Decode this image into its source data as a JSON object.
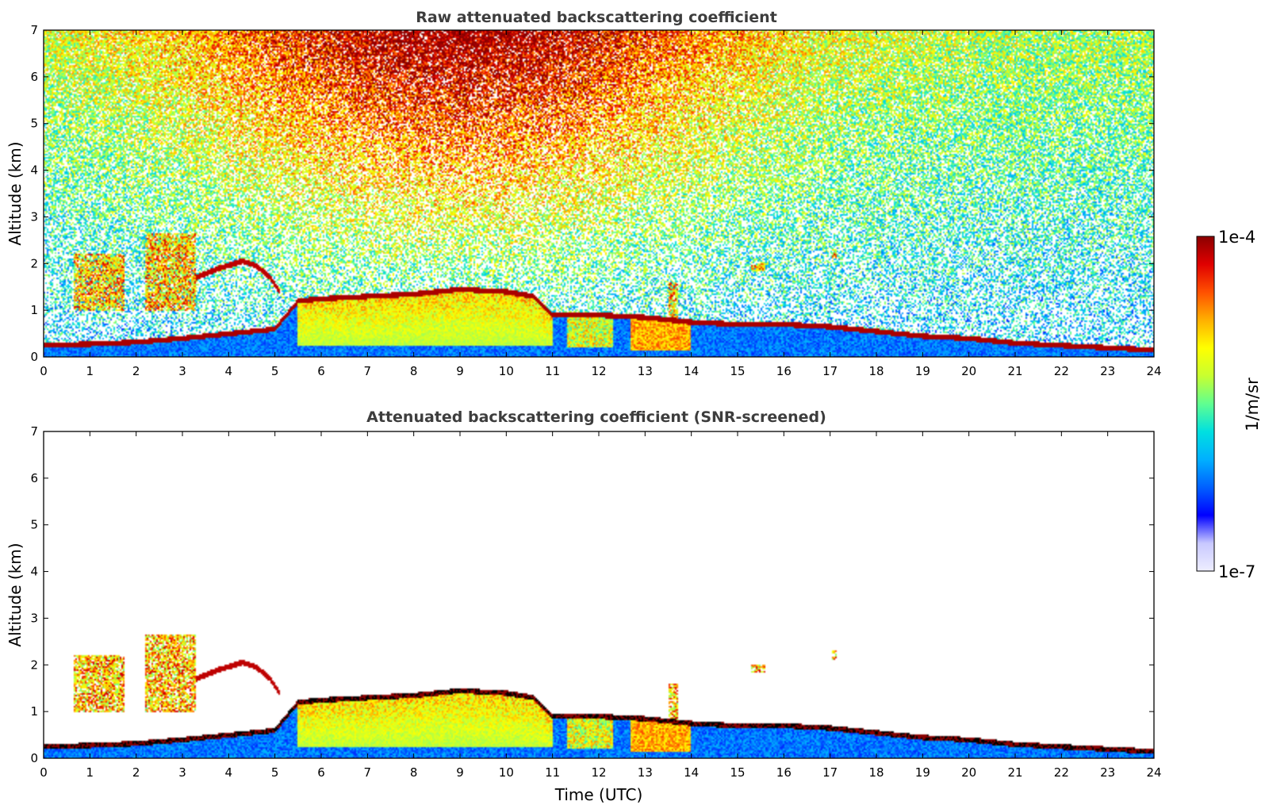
{
  "chart_data": [
    {
      "type": "heatmap",
      "title": "Raw attenuated backscattering coefficient",
      "xlabel": "",
      "ylabel": "Altitude (km)",
      "xlim": [
        0,
        24
      ],
      "ylim": [
        0,
        7
      ],
      "xticks": [
        "0",
        "1",
        "2",
        "3",
        "4",
        "5",
        "6",
        "7",
        "8",
        "9",
        "10",
        "11",
        "12",
        "13",
        "14",
        "15",
        "16",
        "17",
        "18",
        "19",
        "20",
        "21",
        "22",
        "23",
        "24"
      ],
      "yticks": [
        "0",
        "1",
        "2",
        "3",
        "4",
        "5",
        "6",
        "7"
      ],
      "screened": false,
      "layer_top_km": {
        "time_h": [
          0,
          1,
          2,
          3,
          4,
          4.5,
          5,
          5.5,
          6,
          7,
          8,
          9,
          10,
          10.6,
          11,
          12,
          13,
          14,
          15,
          16,
          17,
          18,
          19,
          20,
          21,
          22,
          23,
          24
        ],
        "altitude_km": [
          0.25,
          0.28,
          0.32,
          0.4,
          0.5,
          0.55,
          0.6,
          1.2,
          1.25,
          1.3,
          1.35,
          1.45,
          1.4,
          1.3,
          0.9,
          0.9,
          0.85,
          0.75,
          0.7,
          0.7,
          0.65,
          0.55,
          0.45,
          0.4,
          0.3,
          0.25,
          0.2,
          0.15
        ]
      },
      "residual_layer_km": {
        "time_h": [
          3.3,
          3.8,
          4.3,
          4.6,
          4.9,
          5.1
        ],
        "altitude_km": [
          1.7,
          1.9,
          2.05,
          1.95,
          1.7,
          1.4
        ]
      },
      "clouds": [
        {
          "t0": 0.65,
          "t1": 1.75,
          "z0": 1.0,
          "z1": 2.2
        },
        {
          "t0": 2.2,
          "t1": 3.3,
          "z0": 1.0,
          "z1": 2.65
        },
        {
          "t0": 13.5,
          "t1": 13.7,
          "z0": 0.8,
          "z1": 1.6
        },
        {
          "t0": 15.3,
          "t1": 15.6,
          "z0": 1.85,
          "z1": 2.0
        },
        {
          "t0": 17.05,
          "t1": 17.15,
          "z0": 2.1,
          "z1": 2.3
        }
      ]
    },
    {
      "type": "heatmap",
      "title": "Attenuated backscattering coefficient (SNR-screened)",
      "xlabel": "Time (UTC)",
      "ylabel": "Altitude (km)",
      "xlim": [
        0,
        24
      ],
      "ylim": [
        0,
        7
      ],
      "xticks": [
        "0",
        "1",
        "2",
        "3",
        "4",
        "5",
        "6",
        "7",
        "8",
        "9",
        "10",
        "11",
        "12",
        "13",
        "14",
        "15",
        "16",
        "17",
        "18",
        "19",
        "20",
        "21",
        "22",
        "23",
        "24"
      ],
      "yticks": [
        "0",
        "1",
        "2",
        "3",
        "4",
        "5",
        "6",
        "7"
      ],
      "screened": true
    }
  ],
  "colorbar": {
    "max_label": "1e-4",
    "min_label": "1e-7",
    "unit_label": "1/m/sr",
    "scale": "log",
    "colors": [
      "#eeeeff",
      "#c8c8ff",
      "#0000ff",
      "#0060ff",
      "#00b0ff",
      "#00e0e0",
      "#60ff90",
      "#c8ff30",
      "#ffff00",
      "#ffb000",
      "#ff5000",
      "#e00000",
      "#8b0000"
    ]
  }
}
